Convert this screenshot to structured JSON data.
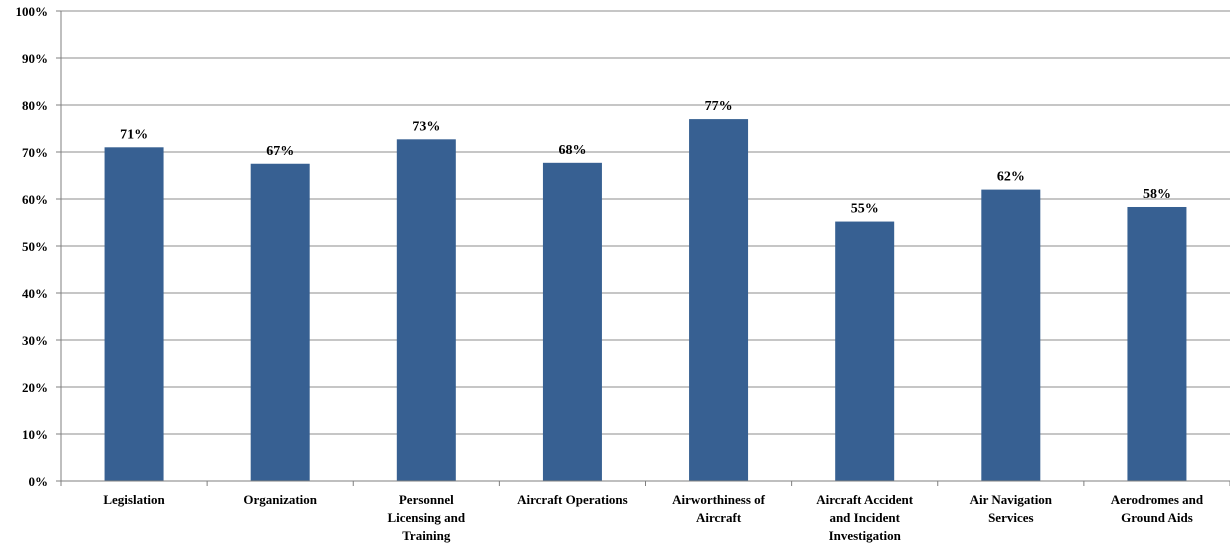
{
  "chart_data": {
    "type": "bar",
    "categories": [
      [
        "Legislation"
      ],
      [
        "Organization"
      ],
      [
        "Personnel",
        "Licensing and",
        "Training"
      ],
      [
        "Aircraft Operations"
      ],
      [
        "Airworthiness of",
        "Aircraft"
      ],
      [
        "Aircraft Accident",
        "and Incident",
        "Investigation"
      ],
      [
        "Air Navigation",
        "Services"
      ],
      [
        "Aerodromes and",
        "Ground Aids"
      ]
    ],
    "values": [
      71,
      67.5,
      72.7,
      67.7,
      77,
      55.2,
      62,
      58.3
    ],
    "data_labels": [
      "71%",
      "67%",
      "73%",
      "68%",
      "77%",
      "55%",
      "62%",
      "58%"
    ],
    "y_ticks": [
      "0%",
      "10%",
      "20%",
      "30%",
      "40%",
      "50%",
      "60%",
      "70%",
      "80%",
      "90%",
      "100%"
    ],
    "ylim": [
      0,
      100
    ],
    "grid": true,
    "bar_color": "#376092",
    "title": "",
    "xlabel": "",
    "ylabel": ""
  }
}
